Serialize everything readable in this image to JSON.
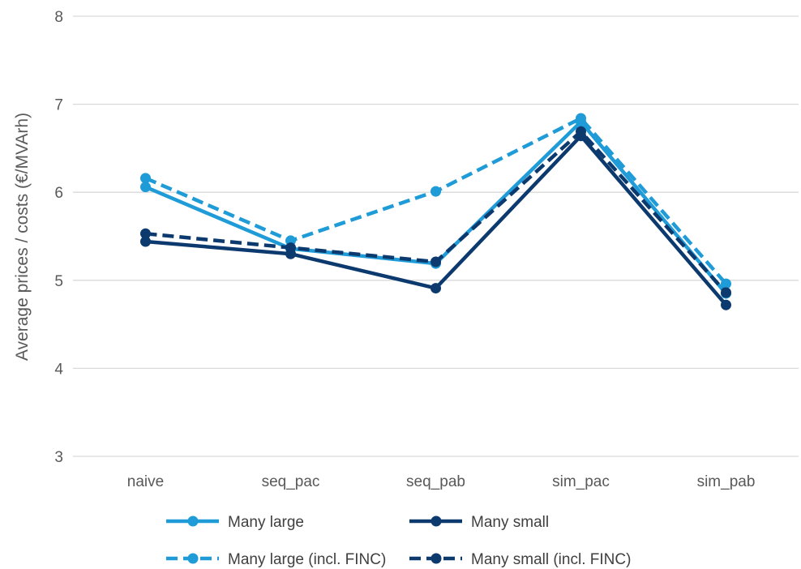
{
  "chart_data": {
    "type": "line",
    "title": "",
    "xlabel": "",
    "ylabel": "Average prices / costs (€/MVArh)",
    "ylim": [
      3,
      8
    ],
    "yticks": [
      3,
      4,
      5,
      6,
      7,
      8
    ],
    "grid": true,
    "legend_position": "bottom",
    "categories": [
      "naive",
      "seq_pac",
      "seq_pab",
      "sim_pac",
      "sim_pab"
    ],
    "series": [
      {
        "name": "Many large",
        "values": [
          6.06,
          5.36,
          5.19,
          6.8,
          4.85
        ],
        "color": "#1f9bd7",
        "dash": "solid"
      },
      {
        "name": "Many small",
        "values": [
          5.44,
          5.3,
          4.91,
          6.64,
          4.72
        ],
        "color": "#0c3a6e",
        "dash": "solid"
      },
      {
        "name": "Many large (incl. FINC)",
        "values": [
          6.16,
          5.45,
          6.01,
          6.84,
          4.96
        ],
        "color": "#1f9bd7",
        "dash": "dashed"
      },
      {
        "name": "Many small (incl. FINC)",
        "values": [
          5.53,
          5.37,
          5.21,
          6.69,
          4.86
        ],
        "color": "#0c3a6e",
        "dash": "dashed"
      }
    ]
  }
}
